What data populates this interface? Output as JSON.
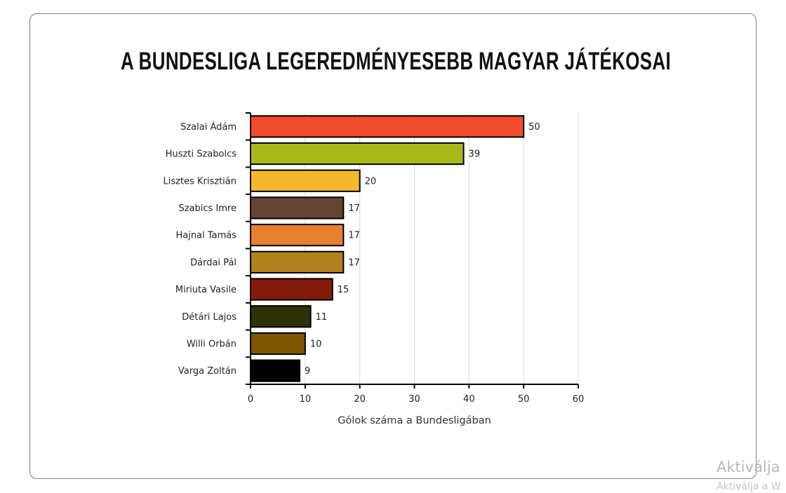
{
  "chart_data": {
    "type": "bar",
    "orientation": "horizontal",
    "title": "A BUNDESLIGA LEGEREDMÉNYESEBB MAGYAR JÁTÉKOSAI",
    "xlabel": "Gólok száma a Bundesligában",
    "ylabel": "",
    "xlim": [
      0,
      60
    ],
    "xticks": [
      0,
      10,
      20,
      30,
      40,
      50,
      60
    ],
    "grid": "vertical",
    "categories": [
      "Szalai Ádám",
      "Huszti Szabolcs",
      "Lisztes Krisztián",
      "Szabics Imre",
      "Hajnal Tamás",
      "Dárdai Pál",
      "Miriuta Vasile",
      "Détári Lajos",
      "Willi Orbán",
      "Varga Zoltán"
    ],
    "values": [
      50,
      39,
      20,
      17,
      17,
      17,
      15,
      11,
      10,
      9
    ],
    "colors": [
      "#f24a2c",
      "#a8b91c",
      "#f4b82a",
      "#674431",
      "#e8812e",
      "#b0821c",
      "#821b07",
      "#303106",
      "#7f5501",
      "#000000"
    ]
  },
  "watermark": {
    "line1": "Aktiválja",
    "line2": "Aktiválja a W"
  }
}
